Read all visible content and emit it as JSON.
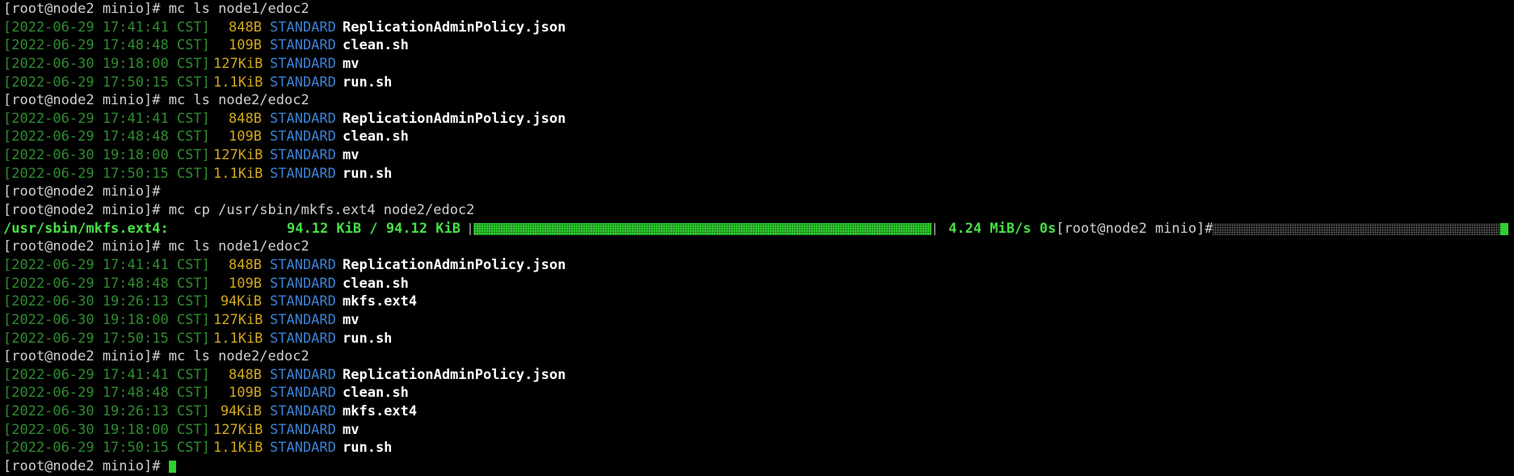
{
  "terminal": {
    "prompt": "[root@node2 minio]# ",
    "blocks": [
      {
        "command": "mc ls node1/edoc2",
        "entries": [
          {
            "ts": "[2022-06-29 17:41:41 CST]",
            "size": "848B",
            "class": "STANDARD",
            "name": "ReplicationAdminPolicy.json"
          },
          {
            "ts": "[2022-06-29 17:48:48 CST]",
            "size": "109B",
            "class": "STANDARD",
            "name": "clean.sh"
          },
          {
            "ts": "[2022-06-30 19:18:00 CST]",
            "size": "127KiB",
            "class": "STANDARD",
            "name": "mv"
          },
          {
            "ts": "[2022-06-29 17:50:15 CST]",
            "size": "1.1KiB",
            "class": "STANDARD",
            "name": "run.sh"
          }
        ]
      },
      {
        "command": "mc ls node2/edoc2",
        "entries": [
          {
            "ts": "[2022-06-29 17:41:41 CST]",
            "size": "848B",
            "class": "STANDARD",
            "name": "ReplicationAdminPolicy.json"
          },
          {
            "ts": "[2022-06-29 17:48:48 CST]",
            "size": "109B",
            "class": "STANDARD",
            "name": "clean.sh"
          },
          {
            "ts": "[2022-06-30 19:18:00 CST]",
            "size": "127KiB",
            "class": "STANDARD",
            "name": "mv"
          },
          {
            "ts": "[2022-06-29 17:50:15 CST]",
            "size": "1.1KiB",
            "class": "STANDARD",
            "name": "run.sh"
          }
        ]
      },
      {
        "command": "",
        "entries": []
      },
      {
        "command": "mc cp /usr/sbin/mkfs.ext4 node2/edoc2",
        "entries": []
      }
    ],
    "progress": {
      "file": "/usr/sbin/mkfs.ext4:",
      "amount": "94.12 KiB / 94.12 KiB",
      "fill_fraction": 1.0,
      "speed": "4.24 MiB/s 0s",
      "trailing_prompt": "[root@node2 minio]#"
    },
    "blocks_after": [
      {
        "command": "mc ls node1/edoc2",
        "entries": [
          {
            "ts": "[2022-06-29 17:41:41 CST]",
            "size": "848B",
            "class": "STANDARD",
            "name": "ReplicationAdminPolicy.json"
          },
          {
            "ts": "[2022-06-29 17:48:48 CST]",
            "size": "109B",
            "class": "STANDARD",
            "name": "clean.sh"
          },
          {
            "ts": "[2022-06-30 19:26:13 CST]",
            "size": "94KiB",
            "class": "STANDARD",
            "name": "mkfs.ext4"
          },
          {
            "ts": "[2022-06-30 19:18:00 CST]",
            "size": "127KiB",
            "class": "STANDARD",
            "name": "mv"
          },
          {
            "ts": "[2022-06-29 17:50:15 CST]",
            "size": "1.1KiB",
            "class": "STANDARD",
            "name": "run.sh"
          }
        ]
      },
      {
        "command": "mc ls node2/edoc2",
        "entries": [
          {
            "ts": "[2022-06-29 17:41:41 CST]",
            "size": "848B",
            "class": "STANDARD",
            "name": "ReplicationAdminPolicy.json"
          },
          {
            "ts": "[2022-06-29 17:48:48 CST]",
            "size": "109B",
            "class": "STANDARD",
            "name": "clean.sh"
          },
          {
            "ts": "[2022-06-30 19:26:13 CST]",
            "size": "94KiB",
            "class": "STANDARD",
            "name": "mkfs.ext4"
          },
          {
            "ts": "[2022-06-30 19:18:00 CST]",
            "size": "127KiB",
            "class": "STANDARD",
            "name": "mv"
          },
          {
            "ts": "[2022-06-29 17:50:15 CST]",
            "size": "1.1KiB",
            "class": "STANDARD",
            "name": "run.sh"
          }
        ]
      }
    ],
    "final_prompt": "[root@node2 minio]# ",
    "colors": {
      "background": "#000000",
      "timestamp": "#2f8c2f",
      "size": "#d4a91a",
      "storage_class": "#3b82d6",
      "filename": "#ffffff",
      "progress": "#46e046",
      "cursor": "#2fd02f"
    }
  }
}
